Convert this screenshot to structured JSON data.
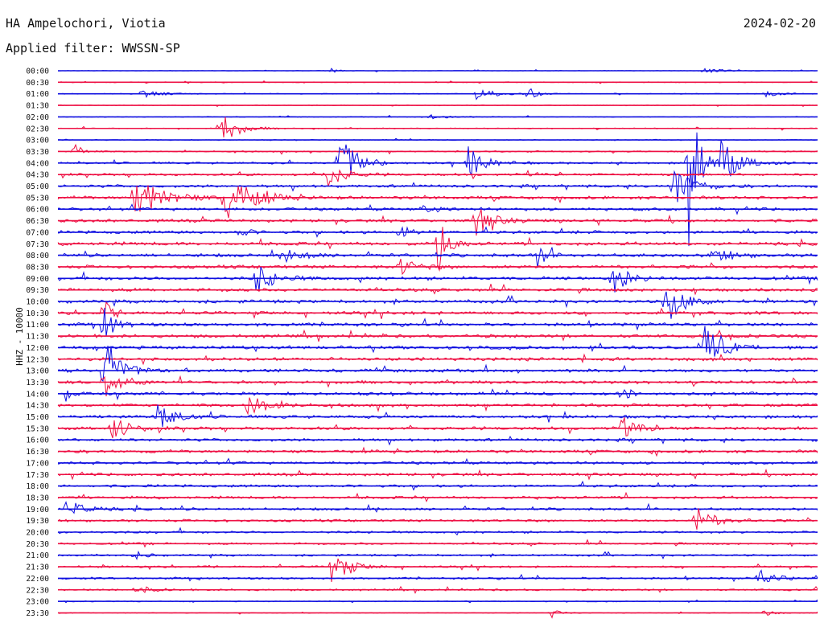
{
  "header": {
    "station": "HA Ampelochori, Viotia",
    "date": "2024-02-20",
    "filter": "Applied filter: WWSSN-SP"
  },
  "y_axis_label": "HHZ - 10000",
  "colors": {
    "blue": "#1010e0",
    "red": "#ee1044"
  },
  "row_labels": [
    "00:00",
    "00:30",
    "01:00",
    "01:30",
    "02:00",
    "02:30",
    "03:00",
    "03:30",
    "04:00",
    "04:30",
    "05:00",
    "05:30",
    "06:00",
    "06:30",
    "07:00",
    "07:30",
    "08:00",
    "08:30",
    "09:00",
    "09:30",
    "10:00",
    "10:30",
    "11:00",
    "11:30",
    "12:00",
    "12:30",
    "13:00",
    "13:30",
    "14:00",
    "14:30",
    "15:00",
    "15:30",
    "16:00",
    "16:30",
    "17:00",
    "17:30",
    "18:00",
    "18:30",
    "19:00",
    "19:30",
    "20:00",
    "20:30",
    "21:00",
    "21:30",
    "22:00",
    "22:30",
    "23:00",
    "23:30"
  ],
  "row_colors": [
    "blue",
    "red",
    "blue",
    "red",
    "blue",
    "red",
    "blue",
    "red",
    "blue",
    "red",
    "blue",
    "red",
    "blue",
    "red",
    "blue",
    "red",
    "blue",
    "red",
    "blue",
    "red",
    "blue",
    "red",
    "blue",
    "red",
    "blue",
    "red",
    "blue",
    "red",
    "blue",
    "red",
    "blue",
    "red",
    "blue",
    "red",
    "blue",
    "red",
    "blue",
    "red",
    "blue",
    "red",
    "blue",
    "red",
    "blue",
    "red",
    "blue",
    "red",
    "blue",
    "red"
  ],
  "chart_data": {
    "type": "seismogram",
    "rows": 48,
    "noise_level": [
      0.3,
      0.4,
      0.4,
      0.4,
      0.4,
      0.5,
      0.5,
      0.7,
      1.0,
      1.2,
      1.4,
      1.5,
      1.5,
      1.5,
      1.5,
      1.6,
      1.6,
      1.6,
      1.6,
      1.6,
      1.6,
      1.6,
      1.6,
      1.6,
      1.6,
      1.6,
      1.5,
      1.5,
      1.5,
      1.5,
      1.5,
      1.5,
      1.4,
      1.4,
      1.4,
      1.4,
      1.3,
      1.3,
      1.3,
      1.2,
      1.1,
      1.0,
      1.0,
      1.0,
      1.0,
      0.9,
      0.5,
      0.4
    ],
    "events": [
      {
        "row": 0,
        "t": 0.36,
        "amp": 3,
        "dur": 0.01
      },
      {
        "row": 0,
        "t": 0.85,
        "amp": 4,
        "dur": 0.02
      },
      {
        "row": 2,
        "t": 0.11,
        "amp": 6,
        "dur": 0.02
      },
      {
        "row": 2,
        "t": 0.55,
        "amp": 9,
        "dur": 0.02
      },
      {
        "row": 2,
        "t": 0.62,
        "amp": 8,
        "dur": 0.01
      },
      {
        "row": 2,
        "t": 0.93,
        "amp": 4,
        "dur": 0.02
      },
      {
        "row": 4,
        "t": 0.49,
        "amp": 4,
        "dur": 0.02
      },
      {
        "row": 5,
        "t": 0.21,
        "amp": 25,
        "dur": 0.02
      },
      {
        "row": 7,
        "t": 0.02,
        "amp": 12,
        "dur": 0.01
      },
      {
        "row": 8,
        "t": 0.37,
        "amp": 40,
        "dur": 0.02
      },
      {
        "row": 8,
        "t": 0.54,
        "amp": 20,
        "dur": 0.02
      },
      {
        "row": 8,
        "t": 0.83,
        "amp": 140,
        "dur": 0.01
      },
      {
        "row": 8,
        "t": 0.87,
        "amp": 35,
        "dur": 0.02
      },
      {
        "row": 9,
        "t": 0.35,
        "amp": 20,
        "dur": 0.02
      },
      {
        "row": 10,
        "t": 0.81,
        "amp": 30,
        "dur": 0.02
      },
      {
        "row": 11,
        "t": 0.1,
        "amp": 30,
        "dur": 0.03
      },
      {
        "row": 11,
        "t": 0.22,
        "amp": 30,
        "dur": 0.03
      },
      {
        "row": 12,
        "t": 0.48,
        "amp": 4,
        "dur": 0.02
      },
      {
        "row": 13,
        "t": 0.55,
        "amp": 18,
        "dur": 0.02
      },
      {
        "row": 14,
        "t": 0.24,
        "amp": 8,
        "dur": 0.01
      },
      {
        "row": 14,
        "t": 0.45,
        "amp": 12,
        "dur": 0.01
      },
      {
        "row": 15,
        "t": 0.5,
        "amp": 40,
        "dur": 0.01
      },
      {
        "row": 16,
        "t": 0.3,
        "amp": 10,
        "dur": 0.02
      },
      {
        "row": 16,
        "t": 0.63,
        "amp": 20,
        "dur": 0.01
      },
      {
        "row": 16,
        "t": 0.86,
        "amp": 12,
        "dur": 0.02
      },
      {
        "row": 17,
        "t": 0.45,
        "amp": 10,
        "dur": 0.02
      },
      {
        "row": 18,
        "t": 0.26,
        "amp": 20,
        "dur": 0.02
      },
      {
        "row": 18,
        "t": 0.73,
        "amp": 18,
        "dur": 0.02
      },
      {
        "row": 20,
        "t": 0.8,
        "amp": 30,
        "dur": 0.02
      },
      {
        "row": 21,
        "t": 0.06,
        "amp": 18,
        "dur": 0.01
      },
      {
        "row": 22,
        "t": 0.06,
        "amp": 30,
        "dur": 0.01
      },
      {
        "row": 24,
        "t": 0.85,
        "amp": 30,
        "dur": 0.02
      },
      {
        "row": 26,
        "t": 0.06,
        "amp": 40,
        "dur": 0.02
      },
      {
        "row": 27,
        "t": 0.06,
        "amp": 20,
        "dur": 0.02
      },
      {
        "row": 28,
        "t": 0.74,
        "amp": 12,
        "dur": 0.01
      },
      {
        "row": 28,
        "t": 0.01,
        "amp": 8,
        "dur": 0.01
      },
      {
        "row": 29,
        "t": 0.25,
        "amp": 18,
        "dur": 0.02
      },
      {
        "row": 30,
        "t": 0.13,
        "amp": 20,
        "dur": 0.02
      },
      {
        "row": 31,
        "t": 0.07,
        "amp": 16,
        "dur": 0.02
      },
      {
        "row": 31,
        "t": 0.74,
        "amp": 12,
        "dur": 0.02
      },
      {
        "row": 38,
        "t": 0.01,
        "amp": 12,
        "dur": 0.02
      },
      {
        "row": 39,
        "t": 0.84,
        "amp": 18,
        "dur": 0.02
      },
      {
        "row": 42,
        "t": 0.1,
        "amp": 6,
        "dur": 0.01
      },
      {
        "row": 43,
        "t": 0.36,
        "amp": 22,
        "dur": 0.02
      },
      {
        "row": 44,
        "t": 0.92,
        "amp": 12,
        "dur": 0.02
      },
      {
        "row": 45,
        "t": 0.1,
        "amp": 6,
        "dur": 0.02
      },
      {
        "row": 47,
        "t": 0.65,
        "amp": 6,
        "dur": 0.01
      },
      {
        "row": 47,
        "t": 0.93,
        "amp": 6,
        "dur": 0.01
      }
    ]
  }
}
